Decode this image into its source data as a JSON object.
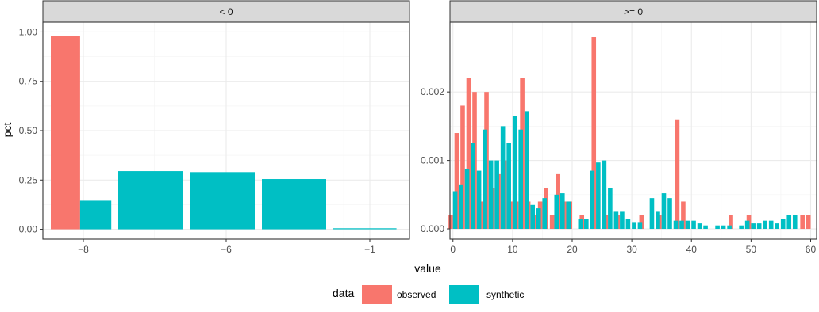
{
  "colors": {
    "observed": "#F8766D",
    "synthetic": "#00BFC4",
    "strip_bg": "#D9D9D9",
    "grid_major": "#EBEBEB",
    "grid_minor": "#F5F5F5",
    "panel_border": "#333333"
  },
  "chart_data": {
    "type": "bar",
    "ylabel": "pct",
    "xlabel": "value",
    "legend": {
      "title": "data",
      "position": "bottom",
      "entries": [
        "observed",
        "synthetic"
      ]
    },
    "grid": true,
    "panels": [
      {
        "strip": "< 0",
        "xlim": [
          -8.5,
          -0.5
        ],
        "ylim": [
          -0.05,
          1.05
        ],
        "x_ticks": [
          -8,
          -6,
          -1
        ],
        "x_tick_labels": [
          "-8",
          "-6",
          "-1"
        ],
        "y_ticks": [
          0,
          0.25,
          0.5,
          0.75,
          1
        ],
        "y_tick_labels": [
          "0.00",
          "0.25",
          "0.50",
          "0.75",
          "1.00"
        ],
        "x_scale": "reciprocal-like (non-linear)",
        "bars": [
          {
            "series": "observed",
            "x_start": -8.5,
            "x_end": -8.05,
            "value": 0.98
          },
          {
            "series": "synthetic",
            "x_start": -8.05,
            "x_end": -7.6,
            "value": 0.145
          },
          {
            "series": "synthetic",
            "x_start": -7.5,
            "x_end": -6.6,
            "value": 0.295
          },
          {
            "series": "synthetic",
            "x_start": -6.5,
            "x_end": -5.6,
            "value": 0.29
          },
          {
            "series": "synthetic",
            "x_start": -5.5,
            "x_end": -4.6,
            "value": 0.255
          },
          {
            "series": "synthetic",
            "x_start": -4.5,
            "x_end": -0.6,
            "value": 0.005
          }
        ]
      },
      {
        "strip": ">= 0",
        "xlim": [
          -0.5,
          61
        ],
        "ylim": [
          -0.00015,
          0.00302
        ],
        "x_ticks": [
          0,
          10,
          20,
          30,
          40,
          50,
          60
        ],
        "x_tick_labels": [
          "0",
          "10",
          "20",
          "30",
          "40",
          "50",
          "60"
        ],
        "y_ticks": [
          0,
          0.001,
          0.002
        ],
        "y_tick_labels": [
          "0.000",
          "0.001",
          "0.002"
        ],
        "observed": [
          [
            0,
            0.0002
          ],
          [
            1,
            0.0014
          ],
          [
            2,
            0.0018
          ],
          [
            3,
            0.0022
          ],
          [
            4,
            0.002
          ],
          [
            5,
            0.0004
          ],
          [
            6,
            0.002
          ],
          [
            7,
            0.0006
          ],
          [
            8,
            0.0008
          ],
          [
            9,
            0.001
          ],
          [
            10,
            0.0004
          ],
          [
            11,
            0.0004
          ],
          [
            12,
            0.0022
          ],
          [
            13,
            0.0004
          ],
          [
            14,
            0.0002
          ],
          [
            15,
            0.0004
          ],
          [
            16,
            0.0006
          ],
          [
            17,
            0.0002
          ],
          [
            18,
            0.0008
          ],
          [
            19,
            0.0004
          ],
          [
            20,
            0.0004
          ],
          [
            22,
            0.0002
          ],
          [
            24,
            0.0028
          ],
          [
            26,
            0.0002
          ],
          [
            28,
            0.0002
          ],
          [
            32,
            0.0002
          ],
          [
            35,
            0.0002
          ],
          [
            38,
            0.0016
          ],
          [
            39,
            0.0004
          ],
          [
            47,
            0.0002
          ],
          [
            50,
            0.0002
          ],
          [
            59,
            0.0002
          ],
          [
            60,
            0.0002
          ]
        ],
        "synthetic": [
          [
            0,
            0.00055
          ],
          [
            1,
            0.00065
          ],
          [
            2,
            0.00088
          ],
          [
            3,
            0.00125
          ],
          [
            4,
            0.00085
          ],
          [
            5,
            0.00145
          ],
          [
            6,
            0.001
          ],
          [
            7,
            0.001
          ],
          [
            8,
            0.0015
          ],
          [
            9,
            0.00125
          ],
          [
            10,
            0.00165
          ],
          [
            11,
            0.00145
          ],
          [
            12,
            0.00172
          ],
          [
            13,
            0.00035
          ],
          [
            14,
            0.0003
          ],
          [
            15,
            0.00045
          ],
          [
            17,
            0.0005
          ],
          [
            18,
            0.00052
          ],
          [
            19,
            0.0004
          ],
          [
            21,
            0.00015
          ],
          [
            22,
            0.00015
          ],
          [
            23,
            0.00085
          ],
          [
            24,
            0.00097
          ],
          [
            25,
            0.001
          ],
          [
            26,
            0.0006
          ],
          [
            27,
            0.00025
          ],
          [
            28,
            0.00025
          ],
          [
            29,
            0.00015
          ],
          [
            30,
            0.0001
          ],
          [
            31,
            0.0001
          ],
          [
            33,
            0.00045
          ],
          [
            34,
            0.00025
          ],
          [
            35,
            0.00052
          ],
          [
            36,
            0.00045
          ],
          [
            37,
            0.00012
          ],
          [
            38,
            0.00012
          ],
          [
            39,
            0.00012
          ],
          [
            40,
            0.00012
          ],
          [
            41,
            8e-05
          ],
          [
            42,
            5e-05
          ],
          [
            44,
            5e-05
          ],
          [
            45,
            5e-05
          ],
          [
            46,
            5e-05
          ],
          [
            48,
            5e-05
          ],
          [
            49,
            0.00012
          ],
          [
            50,
            8e-05
          ],
          [
            51,
            8e-05
          ],
          [
            52,
            0.00012
          ],
          [
            53,
            0.00012
          ],
          [
            54,
            8e-05
          ],
          [
            55,
            0.00015
          ],
          [
            56,
            0.0002
          ],
          [
            57,
            0.0002
          ]
        ]
      }
    ]
  }
}
